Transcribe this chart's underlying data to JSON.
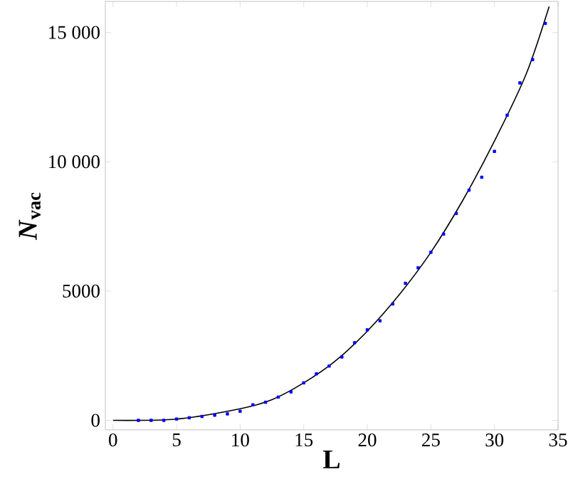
{
  "chart_data": {
    "type": "scatter",
    "xlabel": "L",
    "ylabel": "*N*$_{vac}$",
    "xlim": [
      -0.6,
      35
    ],
    "ylim": [
      -370,
      16200
    ],
    "xticks": [
      0,
      5,
      10,
      15,
      20,
      25,
      30,
      35
    ],
    "yticks": [
      0,
      5000,
      {
        "value": 10000,
        "label": "10 000"
      },
      {
        "value": 15000,
        "label": "15 000"
      }
    ],
    "grid": false,
    "series": [
      {
        "color": "#0000ff",
        "marker": "square",
        "x": [
          2,
          3,
          4,
          5,
          6,
          7,
          8,
          9,
          10,
          11,
          12,
          13,
          14,
          15,
          16,
          17,
          18,
          19,
          20,
          21,
          22,
          23,
          24,
          25,
          26,
          27,
          28,
          29,
          30,
          31,
          32,
          33,
          34
        ],
        "values": [
          0,
          0,
          0,
          50,
          100,
          150,
          200,
          250,
          350,
          600,
          700,
          900,
          1100,
          1450,
          1800,
          2100,
          2450,
          3000,
          3500,
          3850,
          4500,
          5300,
          5900,
          6500,
          7200,
          8000,
          8900,
          9400,
          10400,
          11800,
          13050,
          13950,
          15350
        ]
      },
      {
        "type": "line",
        "color": "#000000",
        "line_style": "solid",
        "x": [
          0,
          5,
          10,
          12.5,
          15,
          17.5,
          20,
          22.5,
          25,
          27.5,
          30,
          32.5,
          34.3
        ],
        "values": [
          0,
          50,
          450,
          800,
          1450,
          2300,
          3450,
          4850,
          6500,
          8500,
          10800,
          13400,
          16000
        ]
      }
    ]
  }
}
